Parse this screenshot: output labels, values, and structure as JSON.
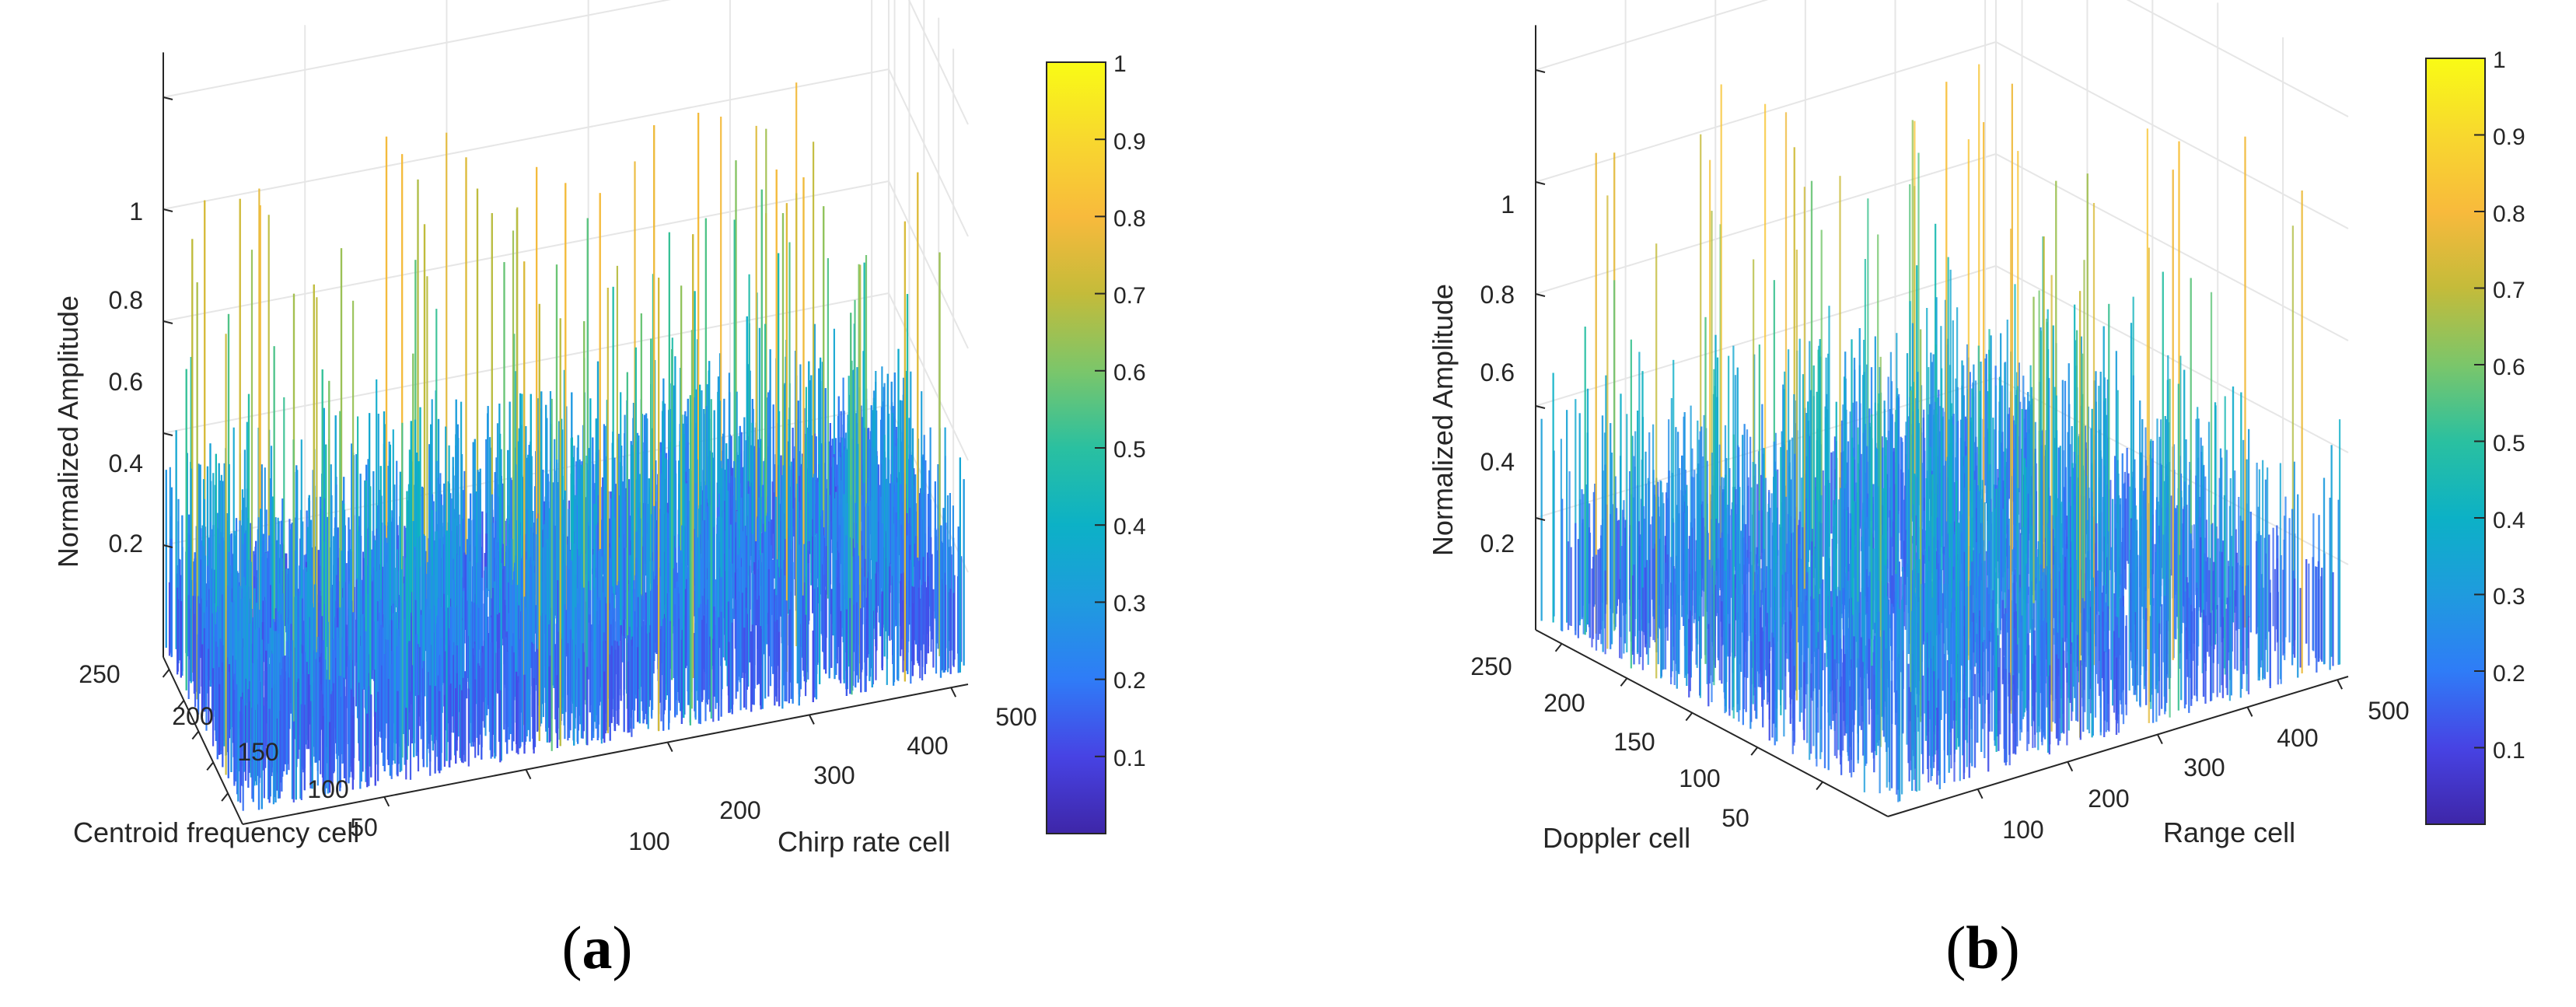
{
  "chart_data": [
    {
      "type": "surface3d",
      "panel": "a",
      "caption": [
        "(",
        "a",
        ")"
      ],
      "zlabel": "Normalized Amplitude",
      "xlabel": "Centroid frequency cell",
      "ylabel": "Chirp rate cell",
      "x_ticks": [
        50,
        100,
        150,
        200,
        250
      ],
      "y_ticks": [
        100,
        200,
        300,
        400,
        500
      ],
      "z_ticks": [
        0.2,
        0.4,
        0.6,
        0.8,
        1
      ],
      "x_range": [
        0,
        270
      ],
      "y_range": [
        0,
        512
      ],
      "z_range": [
        0,
        1
      ],
      "colorbar_ticks": [
        0.1,
        0.2,
        0.3,
        0.4,
        0.5,
        0.6,
        0.7,
        0.8,
        0.9,
        1
      ],
      "colorbar_range": [
        0,
        1
      ],
      "colormap": "parula",
      "noise_mean_amplitude": 0.3,
      "noise_peak_amplitude": 0.9,
      "transparency": false
    },
    {
      "type": "surface3d",
      "panel": "b",
      "caption": [
        "(",
        "b",
        ")"
      ],
      "zlabel": "Normalized Amplitude",
      "xlabel": "Doppler cell",
      "ylabel": "Range cell",
      "x_ticks": [
        50,
        100,
        150,
        200,
        250
      ],
      "y_ticks": [
        100,
        200,
        300,
        400,
        500
      ],
      "z_ticks": [
        0.2,
        0.4,
        0.6,
        0.8,
        1
      ],
      "x_range": [
        0,
        270
      ],
      "y_range": [
        0,
        512
      ],
      "z_range": [
        0,
        1
      ],
      "colorbar_ticks": [
        0.1,
        0.2,
        0.3,
        0.4,
        0.5,
        0.6,
        0.7,
        0.8,
        0.9,
        1
      ],
      "colorbar_range": [
        0,
        1
      ],
      "colormap": "parula",
      "noise_mean_amplitude": 0.35,
      "noise_peak_amplitude": 0.95,
      "transparency": true
    }
  ],
  "colormap_stops": [
    "#3e26a8",
    "#4743e4",
    "#2f7cf7",
    "#1f9bde",
    "#0cb1c6",
    "#2ac0a0",
    "#7bc66a",
    "#c4bb3a",
    "#f8ba3c",
    "#f8d82e",
    "#f9fb15"
  ],
  "colors": {
    "axis": "#262626",
    "grid": "#e6e6e6",
    "background": "#ffffff"
  }
}
